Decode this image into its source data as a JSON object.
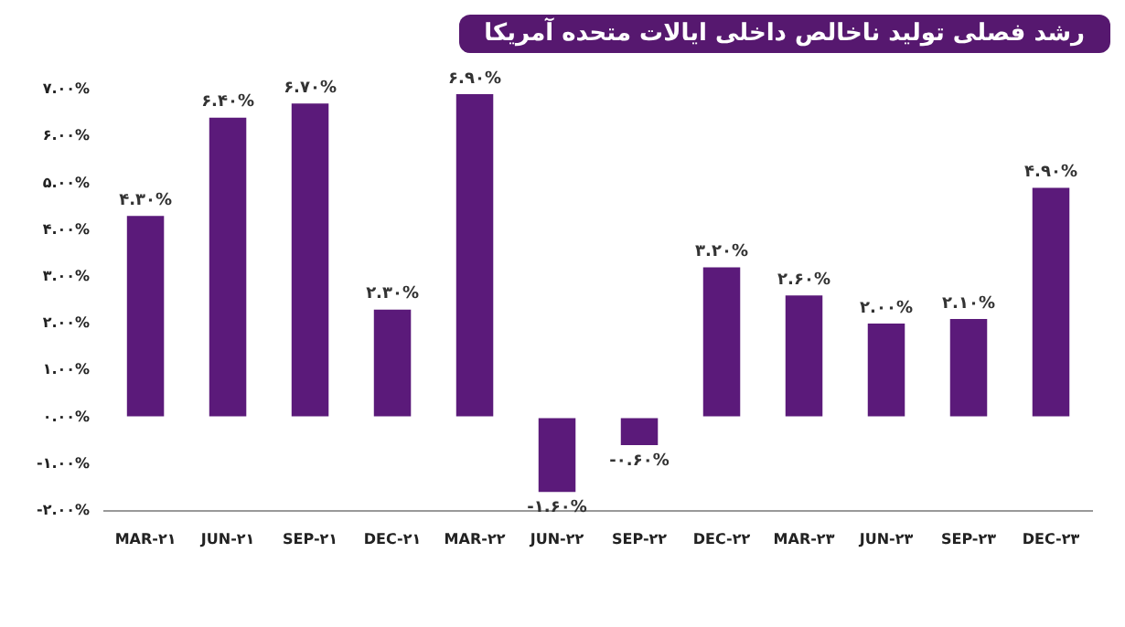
{
  "chart_data": {
    "type": "bar",
    "title": "رشد فصلی تولید ناخالص داخلی ایالات متحده آمریکا",
    "categories": [
      "MAR-۲۱",
      "JUN-۲۱",
      "SEP-۲۱",
      "DEC-۲۱",
      "MAR-۲۲",
      "JUN-۲۲",
      "SEP-۲۲",
      "DEC-۲۲",
      "MAR-۲۳",
      "JUN-۲۳",
      "SEP-۲۳",
      "DEC-۲۳"
    ],
    "values": [
      4.3,
      6.4,
      6.7,
      2.3,
      6.9,
      -1.6,
      -0.6,
      3.2,
      2.6,
      2.0,
      2.1,
      4.9
    ],
    "value_labels": [
      "۴.۳۰%",
      "۶.۴۰%",
      "۶.۷۰%",
      "۲.۳۰%",
      "۶.۹۰%",
      "-۱.۶۰%",
      "-۰.۶۰%",
      "۳.۲۰%",
      "۲.۶۰%",
      "۲.۰۰%",
      "۲.۱۰%",
      "۴.۹۰%"
    ],
    "color": "#5b1a7a",
    "ylim": [
      -2,
      7
    ],
    "yticks": [
      {
        "value": -2,
        "label": "-۲.۰۰%"
      },
      {
        "value": -1,
        "label": "-۱.۰۰%"
      },
      {
        "value": 0,
        "label": "۰.۰۰%"
      },
      {
        "value": 1,
        "label": "۱.۰۰%"
      },
      {
        "value": 2,
        "label": "۲.۰۰%"
      },
      {
        "value": 3,
        "label": "۳.۰۰%"
      },
      {
        "value": 4,
        "label": "۴.۰۰%"
      },
      {
        "value": 5,
        "label": "۵.۰۰%"
      },
      {
        "value": 6,
        "label": "۶.۰۰%"
      },
      {
        "value": 7,
        "label": "۷.۰۰%"
      }
    ],
    "grid": false,
    "legend": false
  }
}
